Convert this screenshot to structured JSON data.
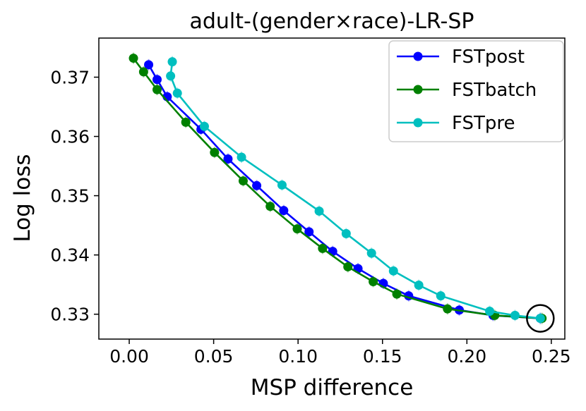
{
  "chart_data": {
    "type": "line",
    "title": "adult-(gender×race)-LR-SP",
    "xlabel": "MSP difference",
    "ylabel": "Log loss",
    "xlim": [
      -0.018,
      0.258
    ],
    "ylim": [
      0.3258,
      0.3766
    ],
    "xticks": [
      0.0,
      0.05,
      0.1,
      0.15,
      0.2,
      0.25
    ],
    "xtick_labels": [
      "0.00",
      "0.05",
      "0.10",
      "0.15",
      "0.20",
      "0.25"
    ],
    "yticks": [
      0.33,
      0.34,
      0.35,
      0.36,
      0.37
    ],
    "ytick_labels": [
      "0.33",
      "0.34",
      "0.35",
      "0.36",
      "0.37"
    ],
    "grid": false,
    "legend_position": "top-right",
    "series": [
      {
        "name": "FSTpost",
        "color": "#0000ff",
        "x": [
          0.0115,
          0.0165,
          0.0225,
          0.0425,
          0.0585,
          0.0755,
          0.0915,
          0.1065,
          0.1205,
          0.1355,
          0.1505,
          0.1655,
          0.1955,
          0.2155,
          0.2435
        ],
        "y": [
          0.3721,
          0.3696,
          0.3667,
          0.3612,
          0.3562,
          0.3517,
          0.3475,
          0.3439,
          0.3406,
          0.3377,
          0.3352,
          0.3331,
          0.3307,
          0.3298,
          0.3293
        ]
      },
      {
        "name": "FSTbatch",
        "color": "#008000",
        "x": [
          0.0025,
          0.0085,
          0.0165,
          0.0335,
          0.0505,
          0.0675,
          0.0835,
          0.0995,
          0.1145,
          0.1295,
          0.1445,
          0.1585,
          0.1885,
          0.2165,
          0.2445
        ],
        "y": [
          0.3732,
          0.3709,
          0.3679,
          0.3624,
          0.3573,
          0.3525,
          0.3482,
          0.3444,
          0.3411,
          0.338,
          0.3355,
          0.3334,
          0.3309,
          0.3298,
          0.3293
        ]
      },
      {
        "name": "FSTpre",
        "color": "#00bfbf",
        "x": [
          0.0255,
          0.0245,
          0.0285,
          0.0445,
          0.0665,
          0.0905,
          0.1125,
          0.1285,
          0.1435,
          0.1565,
          0.1715,
          0.1845,
          0.2135,
          0.2285,
          0.2435
        ],
        "y": [
          0.3726,
          0.3702,
          0.3673,
          0.3617,
          0.3565,
          0.3518,
          0.3474,
          0.3436,
          0.3403,
          0.3373,
          0.3349,
          0.3331,
          0.3305,
          0.3298,
          0.3293
        ]
      }
    ],
    "annotations": [
      {
        "type": "circle",
        "x": 0.2435,
        "y": 0.3293,
        "label": "highlighted endpoint"
      }
    ]
  }
}
